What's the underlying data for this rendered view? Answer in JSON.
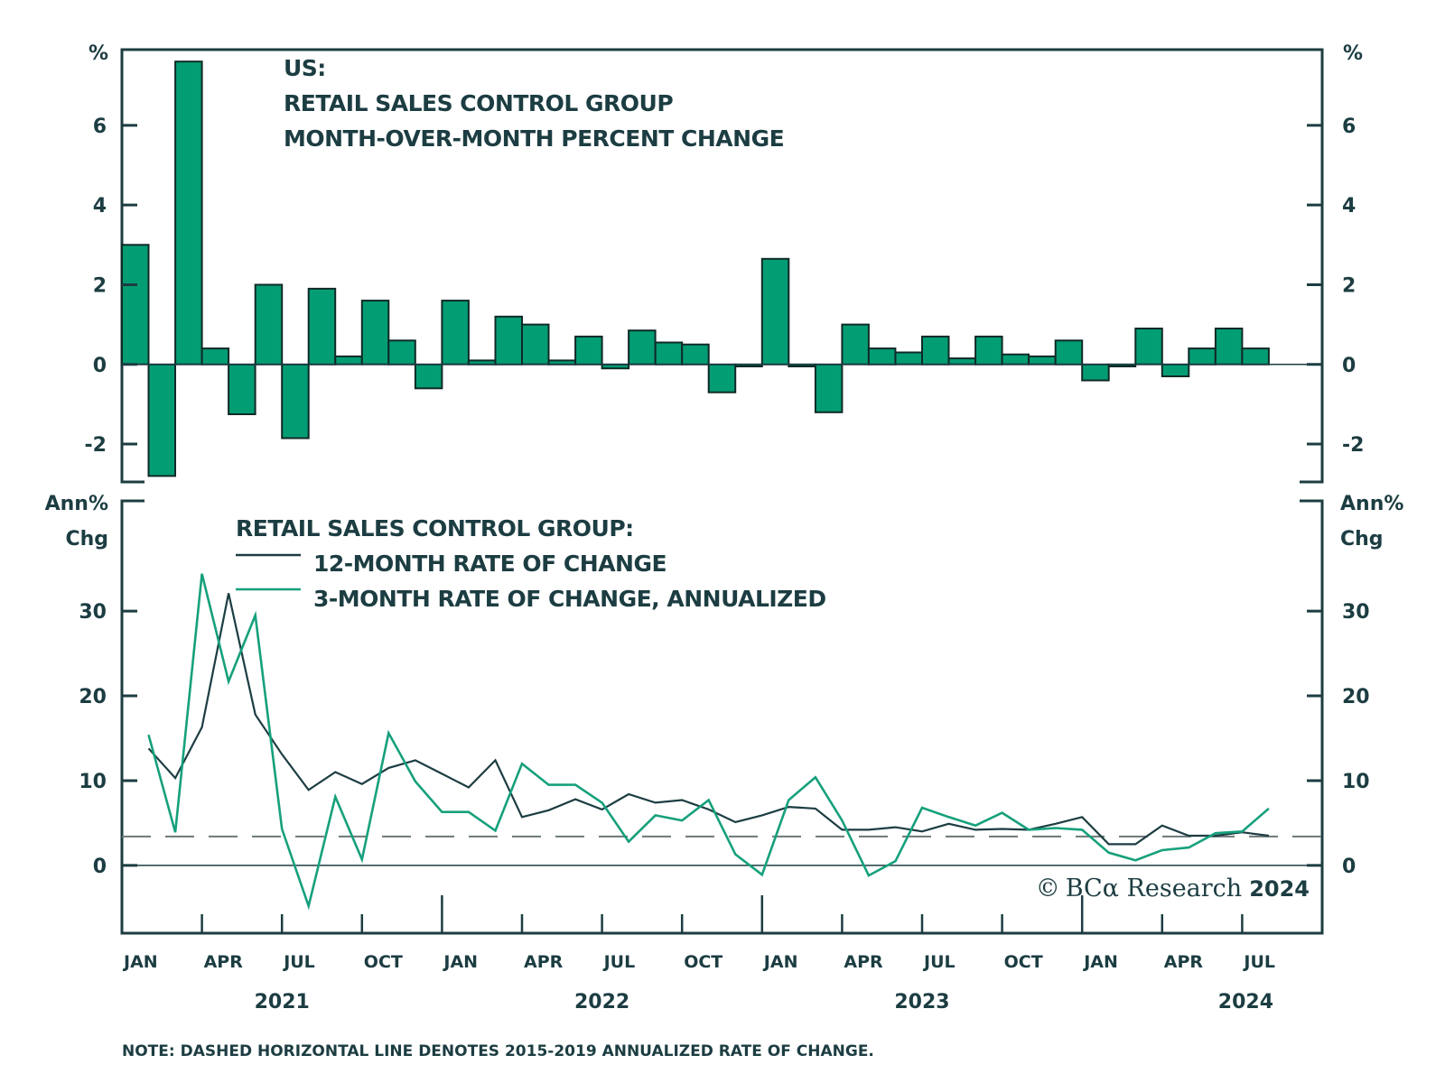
{
  "colors": {
    "axis": "#1c3d42",
    "bar_fill": "#039d74",
    "bar_stroke": "#0f2a26",
    "line_12m": "#1c3d42",
    "line_3m": "#16a07c",
    "dashed": "#6b7777"
  },
  "copyright": {
    "symbol": "©",
    "brand": "BCα Research",
    "year": "2024"
  },
  "note": "NOTE: DASHED HORIZONTAL LINE DENOTES 2015-2019 ANNUALIZED RATE OF CHANGE.",
  "chart_data": [
    {
      "type": "bar",
      "panel": "top",
      "title_lines": [
        "US:",
        "RETAIL SALES CONTROL GROUP",
        "MONTH-OVER-MONTH PERCENT CHANGE"
      ],
      "ylabel_left": "%",
      "ylabel_right": "%",
      "ylim": [
        -2.95,
        7.9
      ],
      "yticks": [
        -2,
        0,
        2,
        4,
        6
      ],
      "ytick_labels": [
        "-2",
        "0",
        "2",
        "4",
        "6"
      ],
      "grid": false,
      "categories": [
        "2021-01",
        "2021-02",
        "2021-03",
        "2021-04",
        "2021-05",
        "2021-06",
        "2021-07",
        "2021-08",
        "2021-09",
        "2021-10",
        "2021-11",
        "2021-12",
        "2022-01",
        "2022-02",
        "2022-03",
        "2022-04",
        "2022-05",
        "2022-06",
        "2022-07",
        "2022-08",
        "2022-09",
        "2022-10",
        "2022-11",
        "2022-12",
        "2023-01",
        "2023-02",
        "2023-03",
        "2023-04",
        "2023-05",
        "2023-06",
        "2023-07",
        "2023-08",
        "2023-09",
        "2023-10",
        "2023-11",
        "2023-12",
        "2024-01",
        "2024-02",
        "2024-03",
        "2024-04",
        "2024-05",
        "2024-06",
        "2024-07"
      ],
      "values": [
        3.0,
        -2.8,
        7.6,
        0.4,
        -1.25,
        2.0,
        -1.85,
        1.9,
        0.2,
        1.6,
        0.6,
        -0.6,
        1.6,
        0.1,
        1.2,
        1.0,
        0.1,
        0.7,
        -0.1,
        0.85,
        0.55,
        0.5,
        -0.7,
        -0.05,
        2.65,
        -0.05,
        -1.2,
        1.0,
        0.4,
        0.3,
        0.7,
        0.15,
        0.7,
        0.25,
        0.2,
        0.6,
        -0.4,
        -0.05,
        0.9,
        -0.3,
        0.4,
        0.9,
        0.4
      ]
    },
    {
      "type": "line",
      "panel": "bottom",
      "legend_title": "RETAIL SALES CONTROL GROUP:",
      "legend_position": "top-left",
      "ylabel_left": [
        "Ann%",
        "Chg"
      ],
      "ylabel_right": [
        "Ann%",
        "Chg"
      ],
      "ylim": [
        -8,
        43
      ],
      "yticks": [
        0,
        10,
        20,
        30
      ],
      "ytick_labels": [
        "0",
        "10",
        "20",
        "30"
      ],
      "grid": false,
      "reference_lines": [
        {
          "value": 0,
          "style": "solid"
        },
        {
          "value": 3.4,
          "style": "dashed",
          "label": "2015-2019 annualized rate of change"
        }
      ],
      "x": [
        "2021-01",
        "2021-02",
        "2021-03",
        "2021-04",
        "2021-05",
        "2021-06",
        "2021-07",
        "2021-08",
        "2021-09",
        "2021-10",
        "2021-11",
        "2021-12",
        "2022-01",
        "2022-02",
        "2022-03",
        "2022-04",
        "2022-05",
        "2022-06",
        "2022-07",
        "2022-08",
        "2022-09",
        "2022-10",
        "2022-11",
        "2022-12",
        "2023-01",
        "2023-02",
        "2023-03",
        "2023-04",
        "2023-05",
        "2023-06",
        "2023-07",
        "2023-08",
        "2023-09",
        "2023-10",
        "2023-11",
        "2023-12",
        "2024-01",
        "2024-02",
        "2024-03",
        "2024-04",
        "2024-05",
        "2024-06",
        "2024-07"
      ],
      "series": [
        {
          "name": "12-MONTH RATE OF CHANGE",
          "color_key": "line_12m",
          "values": [
            13.8,
            10.3,
            16.3,
            32.1,
            17.8,
            13.1,
            8.9,
            11.0,
            9.6,
            11.5,
            12.4,
            10.8,
            9.2,
            12.4,
            5.7,
            6.5,
            7.8,
            6.6,
            8.4,
            7.4,
            7.7,
            6.6,
            5.1,
            5.9,
            6.9,
            6.7,
            4.2,
            4.2,
            4.5,
            4.0,
            4.9,
            4.2,
            4.3,
            4.2,
            4.9,
            5.7,
            2.5,
            2.5,
            4.7,
            3.5,
            3.5,
            3.9,
            3.5
          ]
        },
        {
          "name": "3-MONTH RATE OF CHANGE, ANNUALIZED",
          "color_key": "line_3m",
          "values": [
            15.4,
            3.9,
            34.4,
            21.7,
            29.5,
            4.3,
            -4.8,
            8.1,
            0.7,
            15.6,
            9.9,
            6.3,
            6.3,
            4.1,
            12.0,
            9.5,
            9.5,
            7.4,
            2.8,
            5.9,
            5.3,
            7.7,
            1.3,
            -1.1,
            7.7,
            10.4,
            5.3,
            -1.2,
            0.5,
            6.8,
            5.7,
            4.7,
            6.2,
            4.2,
            4.4,
            4.2,
            1.5,
            0.6,
            1.8,
            2.1,
            3.8,
            4.0,
            6.7
          ]
        }
      ]
    }
  ],
  "x_axis": {
    "month_labels": [
      "JAN",
      "APR",
      "JUL",
      "OCT",
      "JAN",
      "APR",
      "JUL",
      "OCT",
      "JAN",
      "APR",
      "JUL",
      "OCT",
      "JAN",
      "APR",
      "JUL"
    ],
    "year_labels": [
      "2021",
      "2022",
      "2023",
      "2024"
    ],
    "range": [
      "2021-01",
      "2024-09"
    ]
  }
}
